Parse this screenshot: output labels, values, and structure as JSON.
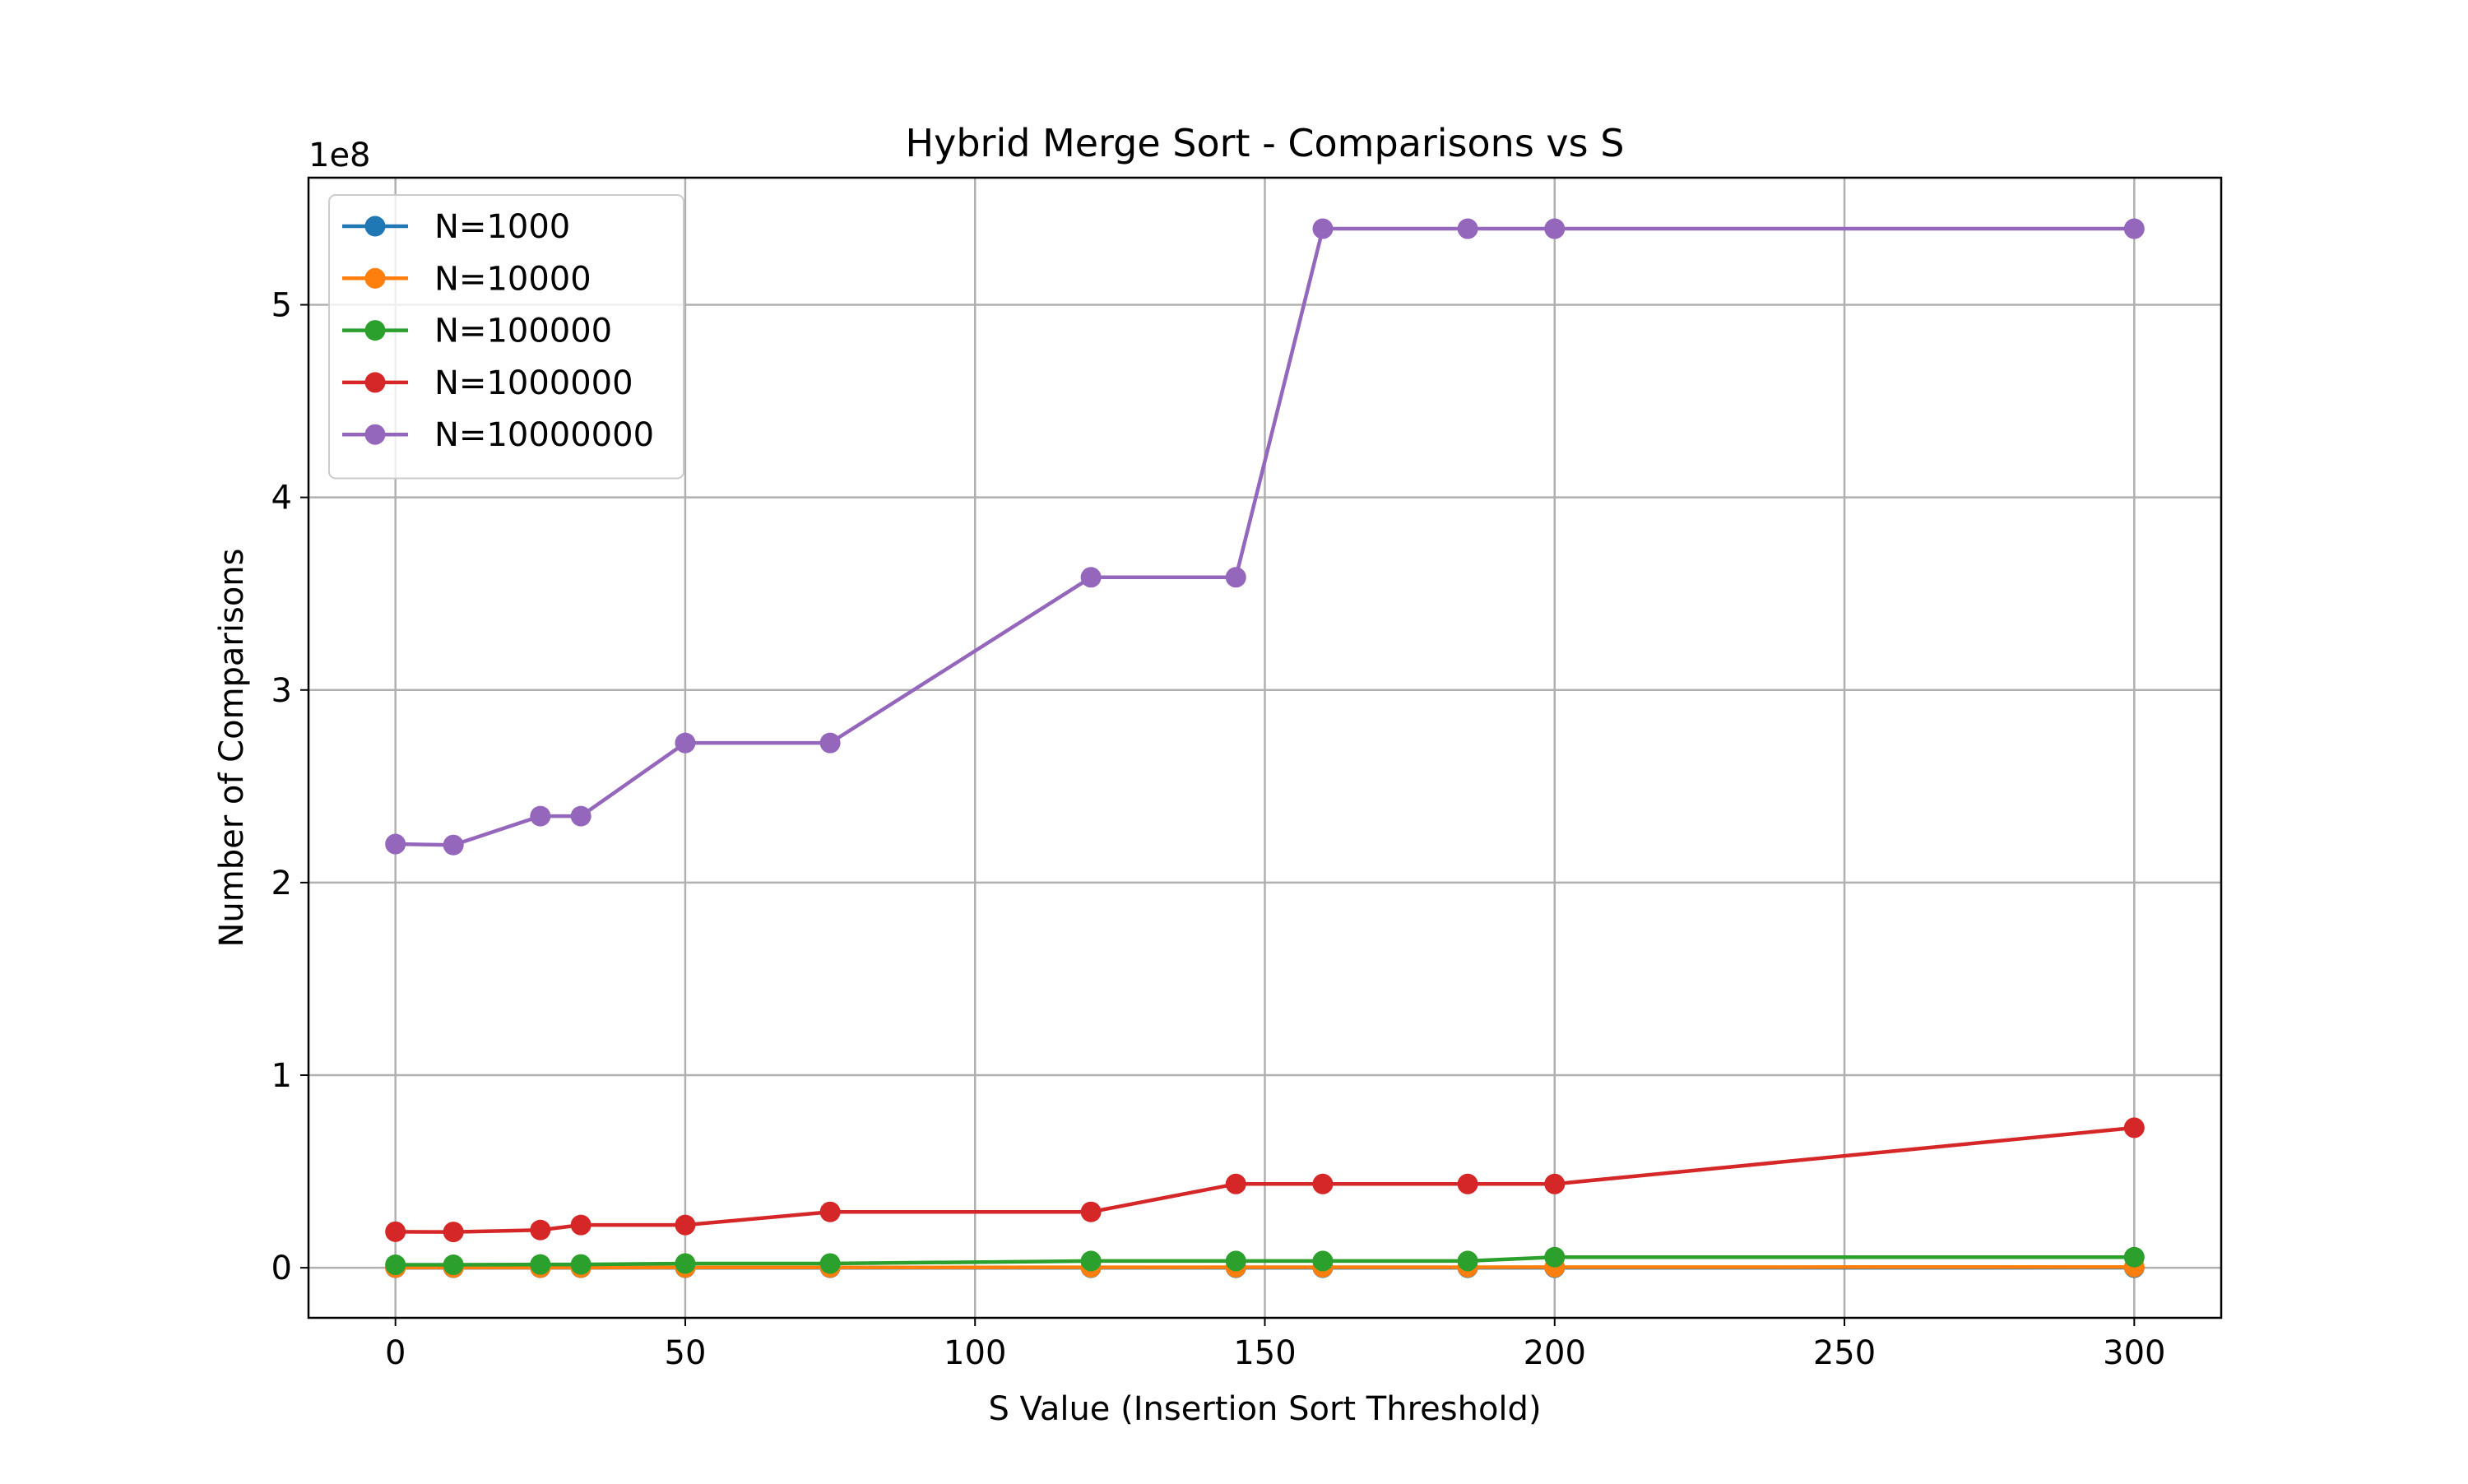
{
  "chart_data": {
    "type": "line",
    "title": "Hybrid Merge Sort - Comparisons vs S",
    "xlabel": "S Value (Insertion Sort Threshold)",
    "ylabel": "Number of Comparisons",
    "y_offset_label": "1e8",
    "y_scale_factor": 100000000,
    "xlim": [
      -15,
      315
    ],
    "ylim": [
      -26000000,
      566000000
    ],
    "x_ticks": [
      0,
      50,
      100,
      150,
      200,
      250,
      300
    ],
    "x_tick_labels": [
      "0",
      "50",
      "100",
      "150",
      "200",
      "250",
      "300"
    ],
    "y_ticks": [
      0,
      100000000,
      200000000,
      300000000,
      400000000,
      500000000
    ],
    "y_tick_labels": [
      "0",
      "1",
      "2",
      "3",
      "4",
      "5"
    ],
    "grid": true,
    "legend_position": "upper-left",
    "x": [
      0,
      10,
      25,
      32,
      50,
      75,
      120,
      145,
      160,
      185,
      200,
      300
    ],
    "series": [
      {
        "name": "N=1000",
        "color": "#1f77b4",
        "values": [
          8700,
          8700,
          9200,
          9300,
          10000,
          11500,
          14500,
          17000,
          18500,
          20500,
          22000,
          31000
        ]
      },
      {
        "name": "N=10000",
        "color": "#ff7f0e",
        "values": [
          120000,
          120000,
          125000,
          127000,
          140000,
          160000,
          220000,
          250000,
          260000,
          280000,
          300000,
          400000
        ]
      },
      {
        "name": "N=100000",
        "color": "#2ca02c",
        "values": [
          1540000,
          1540000,
          1700000,
          1720000,
          2200000,
          2200000,
          3500000,
          3500000,
          3500000,
          3500000,
          5500000,
          5500000
        ]
      },
      {
        "name": "N=1000000",
        "color": "#d62728",
        "values": [
          18700000,
          18600000,
          19600000,
          22200000,
          22200000,
          29000000,
          29000000,
          43500000,
          43500000,
          43500000,
          43500000,
          72700000
        ]
      },
      {
        "name": "N=10000000",
        "color": "#9467bd",
        "values": [
          220000000,
          219500000,
          234500000,
          234500000,
          272500000,
          272500000,
          358500000,
          358500000,
          539500000,
          539500000,
          539500000,
          539500000
        ]
      }
    ]
  }
}
